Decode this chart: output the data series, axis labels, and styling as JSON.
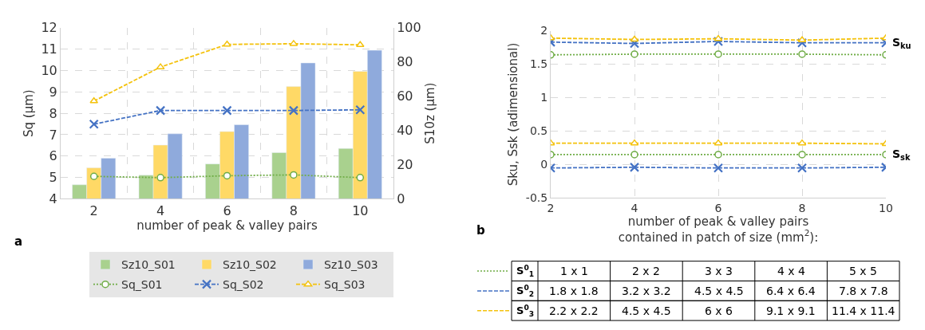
{
  "chart_data": [
    {
      "type": "bar",
      "categories": [
        "2",
        "4",
        "6",
        "8",
        "10"
      ],
      "xlabel": "number of peak & valley pairs",
      "ylabel": "Sq (µm)",
      "y2label": "S10z (µm)",
      "ylim": [
        4,
        12
      ],
      "yticks": [
        4,
        5,
        6,
        7,
        8,
        9,
        10,
        11,
        12
      ],
      "y2lim": [
        0,
        100
      ],
      "y2ticks": [
        0,
        20,
        40,
        60,
        80,
        100
      ],
      "grid": true,
      "legend": "bottom",
      "series": [
        {
          "name": "Sz10_S01",
          "type": "bar",
          "axis": "y2",
          "color": "#a9d18e",
          "values": [
            8.2,
            13.8,
            20.4,
            27.0,
            29.4
          ]
        },
        {
          "name": "Sz10_S02",
          "type": "bar",
          "axis": "y2",
          "color": "#ffd966",
          "values": [
            18.1,
            31.4,
            39.3,
            65.6,
            74.5
          ]
        },
        {
          "name": "Sz10_S03",
          "type": "bar",
          "axis": "y2",
          "color": "#8faadc",
          "values": [
            23.7,
            38.0,
            43.3,
            79.4,
            86.8
          ]
        },
        {
          "name": "Sq_S01",
          "type": "line",
          "axis": "y",
          "color": "#70ad47",
          "marker": "circle",
          "line_style": "dotted",
          "values": [
            5.05,
            4.99,
            5.08,
            5.12,
            4.99
          ]
        },
        {
          "name": "Sq_S02",
          "type": "line",
          "axis": "y",
          "color": "#4472c4",
          "marker": "cross",
          "line_style": "dashed",
          "values": [
            7.49,
            8.13,
            8.13,
            8.13,
            8.16
          ]
        },
        {
          "name": "Sq_S03",
          "type": "line",
          "axis": "y",
          "color": "#f4c20d",
          "marker": "triangle",
          "line_style": "dashed",
          "values": [
            8.57,
            10.16,
            11.22,
            11.25,
            11.2
          ]
        }
      ],
      "annotations": [
        "a"
      ]
    },
    {
      "type": "line",
      "x": [
        2,
        4,
        6,
        8,
        10
      ],
      "xlim": [
        2,
        10
      ],
      "xticks": [
        2,
        4,
        6,
        8,
        10
      ],
      "ylim": [
        -0.5,
        2
      ],
      "yticks": [
        -0.5,
        0,
        0.5,
        1,
        1.5,
        2
      ],
      "grid": true,
      "legend": "bottom",
      "xlabel": "number of peak & valley pairs\ncontained in patch of size (mm$^{2}$):",
      "ylabel": "Sku, Ssk (adimensional)",
      "series": [
        {
          "name": "S$^{0}$$_{1}$",
          "color": "#70ad47",
          "marker": "circle",
          "line_style": "dotted",
          "values": [
            1.64,
            1.65,
            1.65,
            1.65,
            1.64
          ]
        },
        {
          "name": "S$^{0}$$_{2}$",
          "color": "#4472c4",
          "marker": "cross",
          "line_style": "dashed",
          "values": [
            1.83,
            1.81,
            1.84,
            1.82,
            1.82
          ]
        },
        {
          "name": "S$^{0}$$_{3}$",
          "color": "#f4c20d",
          "marker": "triangle",
          "line_style": "dashed",
          "values": [
            1.89,
            1.87,
            1.88,
            1.86,
            1.89
          ]
        },
        {
          "color": "#70ad47",
          "marker": "circle",
          "line_style": "dotted",
          "values": [
            0.15,
            0.15,
            0.15,
            0.15,
            0.15
          ]
        },
        {
          "color": "#4472c4",
          "marker": "cross",
          "line_style": "dashed",
          "values": [
            -0.05,
            -0.04,
            -0.05,
            -0.05,
            -0.04
          ]
        },
        {
          "color": "#f4c20d",
          "marker": "triangle",
          "line_style": "dashed",
          "values": [
            0.32,
            0.32,
            0.32,
            0.32,
            0.31
          ]
        }
      ],
      "annotations": [
        "b",
        {
          "text": "S$_{ku}$",
          "x": 10,
          "y": 1.82
        },
        {
          "text": "S$_{sk}$",
          "x": 10,
          "y": 0.15
        },
        "1 x 1",
        "2 x 2",
        "3 x 3",
        "4 x 4",
        "5 x 5",
        "1.8 x 1.8",
        "3.2 x 3.2",
        "4.5 x 4.5",
        "6.4 x 6.4",
        "7.8 x 7.8",
        "2.2 x 2.2",
        "4.5 x 4.5",
        "6 x 6",
        "9.1 x 9.1",
        "11.4 x 11.4"
      ]
    }
  ]
}
